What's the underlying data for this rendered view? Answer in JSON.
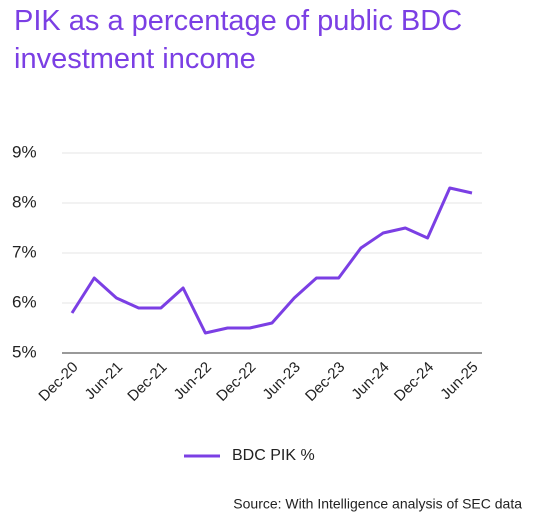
{
  "chart_data": {
    "type": "line",
    "title": "PIK as a percentage of public BDC investment income",
    "categories": [
      "Dec-20",
      null,
      "Jun-21",
      null,
      "Dec-21",
      null,
      "Jun-22",
      null,
      "Dec-22",
      null,
      "Jun-23",
      null,
      "Dec-23",
      null,
      "Jun-24",
      null,
      "Dec-24",
      null,
      "Jun-25"
    ],
    "series": [
      {
        "name": "BDC PIK %",
        "color": "#7b3fe4",
        "values": [
          5.8,
          6.5,
          6.1,
          5.9,
          5.9,
          6.3,
          5.4,
          5.5,
          5.5,
          5.6,
          6.1,
          6.5,
          6.5,
          7.1,
          7.4,
          7.5,
          7.3,
          8.3,
          8.2
        ]
      }
    ],
    "ylim": [
      5,
      9
    ],
    "yticks": [
      {
        "value": 5,
        "label": "5%"
      },
      {
        "value": 6,
        "label": "6%"
      },
      {
        "value": 7,
        "label": "7%"
      },
      {
        "value": 8,
        "label": "8%"
      },
      {
        "value": 9,
        "label": "9%"
      }
    ],
    "grid": true,
    "source": "Source: With Intelligence analysis of SEC data"
  }
}
